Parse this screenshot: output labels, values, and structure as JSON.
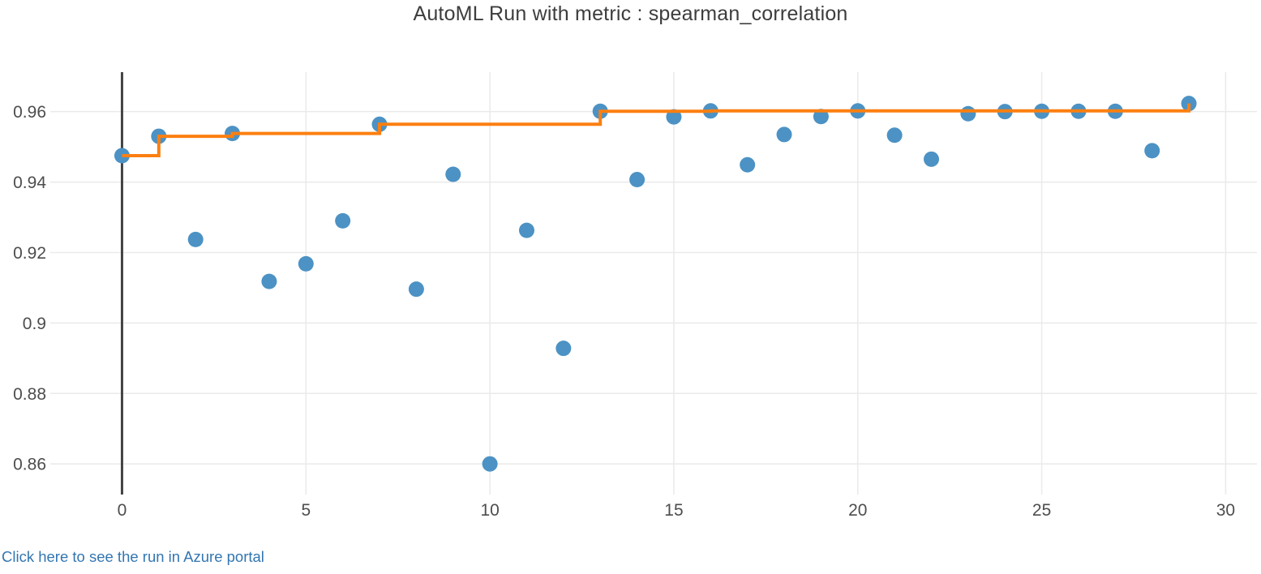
{
  "page": {
    "title": "AutoML Run with metric : spearman_correlation",
    "footer_link_text": "Click here to see the run in Azure portal"
  },
  "colors": {
    "marker_blue": "#4C92C4",
    "best_line_orange": "#FC7F10",
    "grid": "#EAEAEA",
    "zeroline": "#434343",
    "tick_text": "#4d4d4d",
    "title_text": "#3d3d3d",
    "link_blue": "#3276b1",
    "background": "#ffffff"
  },
  "chart_data": {
    "type": "scatter",
    "title": "AutoML Run with metric : spearman_correlation",
    "xlabel": "",
    "ylabel": "",
    "legend_position": "none",
    "grid": true,
    "x": [
      0,
      1,
      2,
      3,
      4,
      5,
      6,
      7,
      8,
      9,
      10,
      11,
      12,
      13,
      14,
      15,
      16,
      17,
      18,
      19,
      20,
      21,
      22,
      23,
      24,
      25,
      26,
      27,
      28,
      29
    ],
    "series": [
      {
        "name": "metric_value",
        "type": "scatter",
        "values": [
          0.9475,
          0.953,
          0.9237,
          0.9538,
          0.9118,
          0.9168,
          0.929,
          0.9564,
          0.9096,
          0.9422,
          0.86,
          0.9263,
          0.8928,
          0.9601,
          0.9407,
          0.9585,
          0.9602,
          0.9449,
          0.9535,
          0.9586,
          0.9602,
          0.9533,
          0.9465,
          0.9594,
          0.96,
          0.9601,
          0.9601,
          0.9601,
          0.9489,
          0.9623
        ]
      },
      {
        "name": "best_so_far",
        "type": "step-line",
        "values": [
          0.9475,
          0.953,
          0.953,
          0.9538,
          0.9538,
          0.9538,
          0.9538,
          0.9564,
          0.9564,
          0.9564,
          0.9564,
          0.9564,
          0.9564,
          0.9601,
          0.9601,
          0.9601,
          0.9602,
          0.9602,
          0.9602,
          0.9602,
          0.9602,
          0.9602,
          0.9602,
          0.9602,
          0.9602,
          0.9602,
          0.9602,
          0.9602,
          0.9602,
          0.9623
        ]
      }
    ],
    "xticks": [
      0,
      5,
      10,
      15,
      20,
      25,
      30
    ],
    "yticks": [
      0.96,
      0.94,
      0.92,
      0.9,
      0.88,
      0.86
    ],
    "ytick_labels": [
      "0.96",
      "0.94",
      "0.92",
      "0.9",
      "0.88",
      "0.86"
    ],
    "xtick_labels": [
      "0",
      "5",
      "10",
      "15",
      "20",
      "25",
      "30"
    ],
    "xlim": [
      -1.95,
      30.85
    ],
    "ylim": [
      0.8513,
      0.9712
    ]
  }
}
